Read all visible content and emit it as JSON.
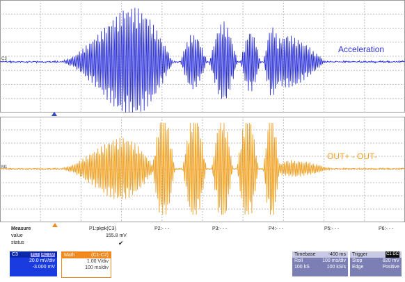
{
  "traces": {
    "acceleration_label": "Acceleration",
    "out_label": "OUT+ - OUT-",
    "top_channel_tag": "C3",
    "bottom_channel_tag": "M1",
    "colors": {
      "acceleration": "#2f34d8",
      "out": "#f0a020"
    }
  },
  "measure": {
    "title": "Measure",
    "value_label": "value",
    "status_label": "status",
    "params": [
      {
        "name": "P1:pkpk(C3)",
        "value": "155.8 mV",
        "status": "✔"
      },
      {
        "name": "P2:- - -",
        "value": "",
        "status": ""
      },
      {
        "name": "P3:- - -",
        "value": "",
        "status": ""
      },
      {
        "name": "P4:- - -",
        "value": "",
        "status": ""
      },
      {
        "name": "P5:- - -",
        "value": "",
        "status": ""
      },
      {
        "name": "P6:- - -",
        "value": "",
        "status": ""
      }
    ]
  },
  "channel_box": {
    "name": "C3",
    "badge1": "FLT",
    "badge2": "AC 1M",
    "vdiv": "20.0 mV/div",
    "offset": "-3.000 mV"
  },
  "math_box": {
    "name": "Math",
    "expr": "(C1-C2)",
    "vdiv": "1.00 V/div",
    "tdiv": "100 ms/div"
  },
  "timebase_box": {
    "label": "Timebase",
    "delay": "-400 ms",
    "mode": "Roll",
    "tdiv": "100 ms/div",
    "samples": "100 kS",
    "rate": "100 kS/s"
  },
  "trigger_box": {
    "label": "Trigger",
    "badge": "C1 DC",
    "mode": "Stop",
    "level": "820 mV",
    "type": "Edge",
    "slope": "Positive"
  }
}
